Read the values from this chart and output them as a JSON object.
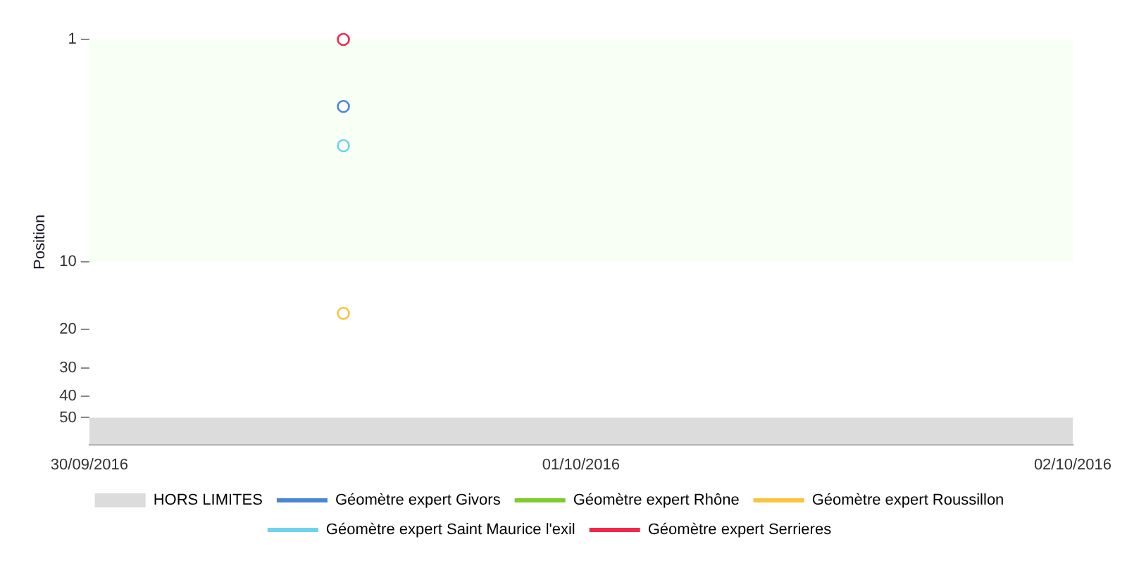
{
  "chart_data": {
    "type": "line",
    "ylabel": "Position",
    "log": "y",
    "marker": "circle",
    "line_style": "solid",
    "grid": false,
    "legend": "bottom",
    "xlim": [
      "2016-09-30",
      "2016-10-02"
    ],
    "xticks": [
      {
        "value": "2016-09-30",
        "label": "30/09/2016"
      },
      {
        "value": "2016-10-01",
        "label": "01/10/2016"
      },
      {
        "value": "2016-10-02",
        "label": "02/10/2016"
      }
    ],
    "ylim": [
      66,
      1
    ],
    "yticks": [
      1,
      10,
      20,
      30,
      40,
      50
    ],
    "bands": [
      {
        "axis": "y",
        "from": 50,
        "to": 66,
        "label": "HORS LIMITES",
        "color": "#dcdcdc"
      },
      {
        "axis": "y",
        "from": 1,
        "to": 10,
        "color": "#f8fff4"
      }
    ],
    "x": [
      "2016-09-30T12:24"
    ],
    "series": [
      {
        "name": "Géomètre expert Givors",
        "color": "#4a86d4",
        "values": [
          2
        ]
      },
      {
        "name": "Géomètre expert Rhône",
        "color": "#7ccc2c",
        "values": [
          null
        ]
      },
      {
        "name": "Géomètre expert Roussillon",
        "color": "#f9c43a",
        "values": [
          17
        ]
      },
      {
        "name": "Géomètre expert Saint Maurice l'exil",
        "color": "#6fd3ee",
        "values": [
          3
        ]
      },
      {
        "name": "Géomètre expert Serrieres",
        "color": "#f0284a",
        "values": [
          1
        ]
      }
    ]
  }
}
